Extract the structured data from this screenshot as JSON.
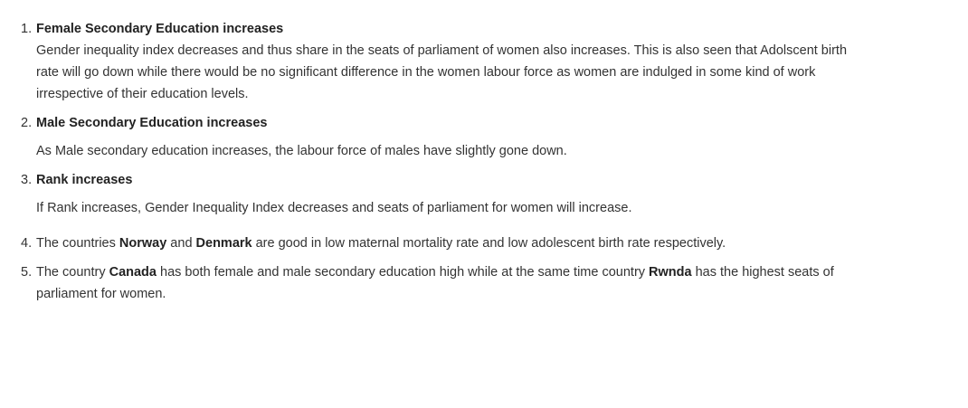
{
  "items": [
    {
      "number": "1.",
      "heading": "Female Secondary Education increases",
      "body": "Gender inequality index decreases and thus share in the seats of parliament of women also increases. This is also seen that Adolscent birth rate will go down while there would be no significant difference in the women labour force as women are indulged in some kind of work irrespective of their education levels."
    },
    {
      "number": "2.",
      "heading": "Male Secondary Education increases",
      "body": "As Male secondary education increases, the labour force of males have slightly gone down."
    },
    {
      "number": "3.",
      "heading": "Rank increases",
      "body": "If Rank increases, Gender Inequality Index decreases and seats of parliament for women will increase."
    },
    {
      "number": "4.",
      "text_1": "The countries ",
      "bold_1": "Norway",
      "text_2": " and ",
      "bold_2": "Denmark",
      "text_3": " are good in low maternal mortality rate and low adolescent birth rate respectively."
    },
    {
      "number": "5.",
      "text_1": "The country ",
      "bold_1": "Canada",
      "text_2": " has both female and male secondary education high while at the same time country ",
      "bold_2": "Rwnda",
      "text_3": " has the highest seats of parliament for women."
    }
  ]
}
